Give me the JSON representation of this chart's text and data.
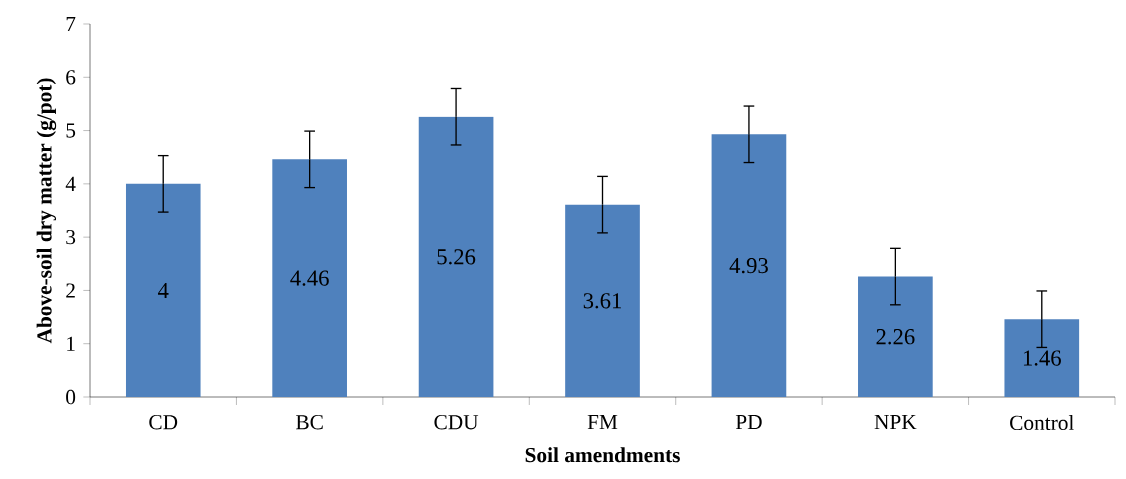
{
  "chart_data": {
    "type": "bar",
    "xlabel": "Soil amendments",
    "ylabel": "Above-soil dry matter (g/pot)",
    "categories": [
      "CD",
      "BC",
      "CDU",
      "FM",
      "PD",
      "NPK",
      "Control"
    ],
    "values": [
      4,
      4.46,
      5.26,
      3.61,
      4.93,
      2.26,
      1.46
    ],
    "errors": [
      0.53,
      0.53,
      0.53,
      0.53,
      0.53,
      0.53,
      0.53
    ],
    "color": "#4f81bd",
    "data_labels": true,
    "ylim": [
      0,
      7
    ],
    "yticks": [
      0,
      1,
      2,
      3,
      4,
      5,
      6,
      7
    ]
  }
}
